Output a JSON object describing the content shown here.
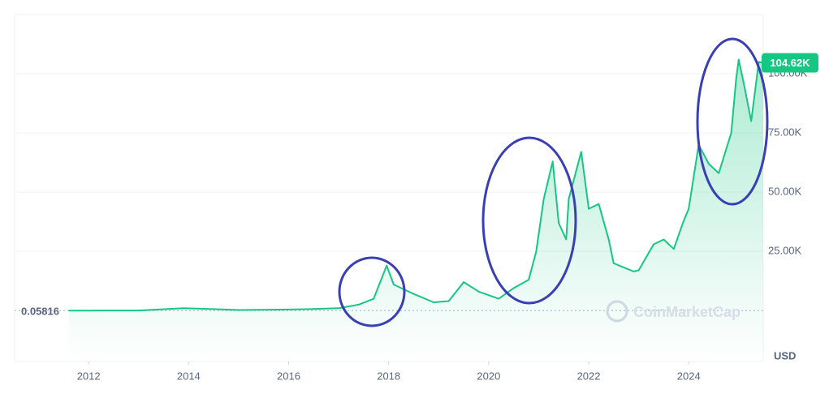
{
  "chart_data": {
    "type": "line",
    "xlim": [
      2010.52,
      2025.49
    ],
    "xticks": [
      2012,
      2014,
      2016,
      2018,
      2020,
      2022,
      2024
    ],
    "ylim": [
      -21500,
      125000
    ],
    "yticks": [
      {
        "value": 25000,
        "label": "25.00K"
      },
      {
        "value": 50000,
        "label": "50.00K"
      },
      {
        "value": 75000,
        "label": "75.00K"
      },
      {
        "value": 100000,
        "label": "100.00K"
      }
    ],
    "grid": true,
    "reference_line": 0.05816,
    "current_price": {
      "value": 104620,
      "label": "104.62K"
    },
    "currency": "USD",
    "watermark": "CoinMarketCap",
    "series": [
      {
        "color": "#16c784",
        "x": [
          2011.6,
          2012.0,
          2013.0,
          2013.9,
          2014.5,
          2015.0,
          2016.0,
          2016.5,
          2017.0,
          2017.4,
          2017.7,
          2017.96,
          2018.1,
          2018.3,
          2018.5,
          2018.9,
          2019.2,
          2019.5,
          2019.8,
          2020.2,
          2020.5,
          2020.8,
          2020.95,
          2021.1,
          2021.28,
          2021.4,
          2021.55,
          2021.6,
          2021.85,
          2022.0,
          2022.2,
          2022.4,
          2022.5,
          2022.9,
          2023.0,
          2023.3,
          2023.5,
          2023.7,
          2023.9,
          2024.0,
          2024.2,
          2024.4,
          2024.6,
          2024.85,
          2024.95,
          2025.0,
          2025.1,
          2025.25,
          2025.4,
          2025.49
        ],
        "values": [
          0.05816,
          5,
          13,
          1000,
          600,
          250,
          430,
          650,
          1000,
          2500,
          5000,
          19000,
          11000,
          9000,
          7000,
          3500,
          4000,
          12000,
          8000,
          5000,
          9500,
          13000,
          25000,
          47000,
          63000,
          37000,
          30000,
          47000,
          67000,
          43000,
          45000,
          30000,
          20000,
          16500,
          17000,
          28000,
          30000,
          26000,
          38000,
          43000,
          70000,
          62000,
          58000,
          75000,
          98000,
          106000,
          96000,
          80000,
          105000,
          104620
        ]
      }
    ]
  }
}
